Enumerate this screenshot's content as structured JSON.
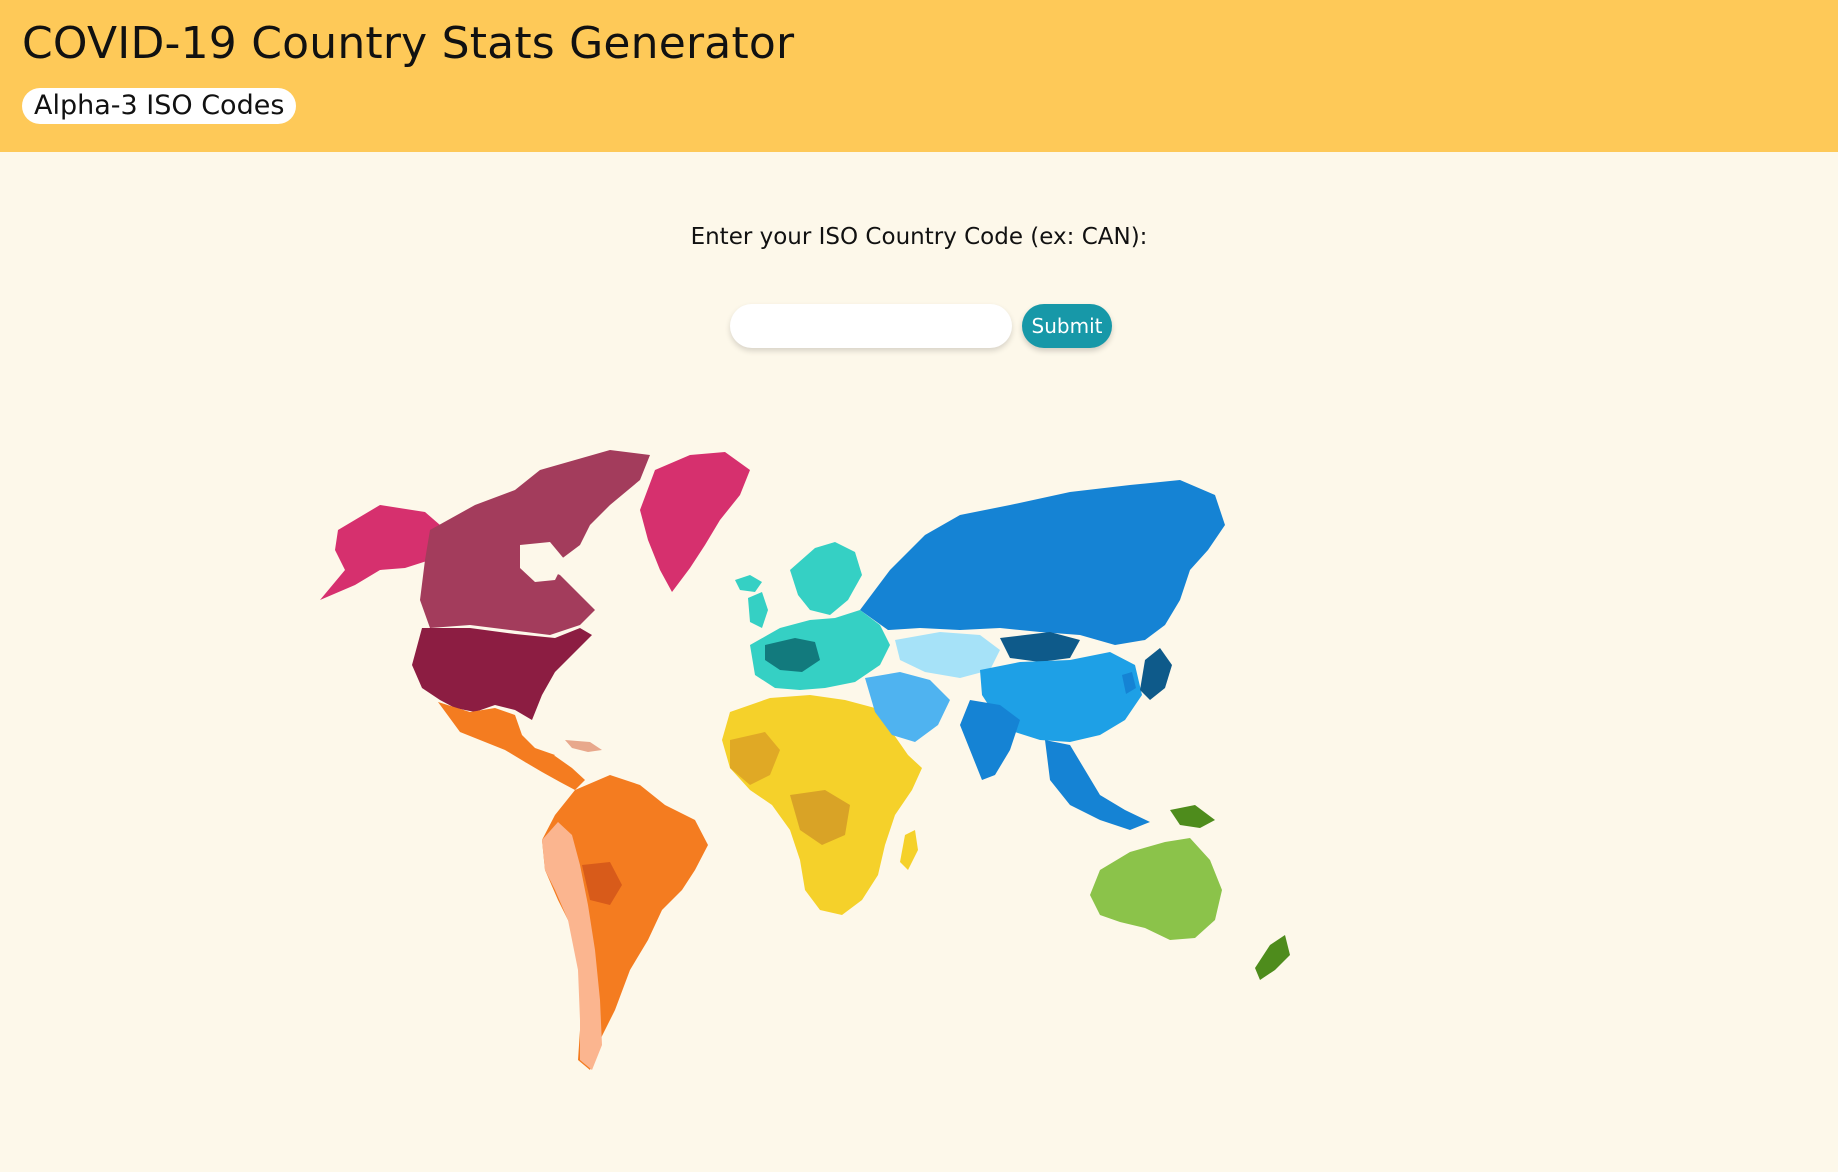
{
  "header": {
    "title": "COVID-19 Country Stats Generator",
    "iso_link_label": "Alpha-3 ISO Codes",
    "background_color": "#fec958"
  },
  "form": {
    "prompt": "Enter your ISO Country Code (ex: CAN):",
    "input_value": "",
    "submit_label": "Submit",
    "submit_color": "#1798a8"
  },
  "map": {
    "icon": "world-map-illustration",
    "region_colors": {
      "north_america": "#a33c5c",
      "united_states": "#8c1d42",
      "alaska": "#d6306e",
      "greenland": "#d6306e",
      "central_america": "#f47c20",
      "south_america": "#f47c20",
      "south_america_light": "#fbb58f",
      "europe": "#35d0c4",
      "europe_dark": "#127a7d",
      "africa": "#f5d12a",
      "africa_dark": "#e0a925",
      "russia": "#1583d4",
      "asia": "#1ea0e6",
      "asia_light": "#a6e2f8",
      "asia_dark": "#0e5a8a",
      "oceania": "#8bc34a",
      "oceania_dark": "#4e8c1c"
    }
  }
}
